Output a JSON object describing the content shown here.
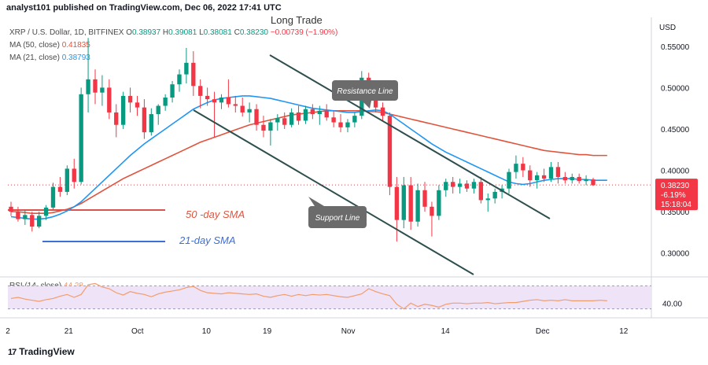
{
  "header": {
    "publisher": "analyst101 published on TradingView.com, Dec 06, 2022 17:41 UTC",
    "overlay_title": "Long Trade"
  },
  "legend": {
    "symbol": "XRP / U.S. Dollar, 1D, BITFINEX",
    "ohlc_prefix_o": "O",
    "o": "0.38937",
    "ohlc_prefix_h": "H",
    "h": "0.39081",
    "ohlc_prefix_l": "L",
    "l": "0.38081",
    "ohlc_prefix_c": "C",
    "c": "0.38230",
    "change": "−0.00739 (−1.90%)",
    "ma50_label": "MA (50, close)",
    "ma50_value": "0.41835",
    "ma21_label": "MA (21, close)",
    "ma21_value": "0.38793",
    "rsi_label": "RSI (14, close)",
    "rsi_value": "44.28"
  },
  "price_axis": {
    "currency": "USD",
    "ticks": [
      "0.55000",
      "0.50000",
      "0.45000",
      "0.40000",
      "0.35000",
      "0.30000"
    ],
    "current_price": "0.38230",
    "current_change": "-6.19%",
    "countdown": "15:18:04"
  },
  "rsi_axis": {
    "ticks": [
      "40.00"
    ]
  },
  "time_axis": {
    "ticks": [
      "2",
      "21",
      "Oct",
      "10",
      "19",
      "Nov",
      "14",
      "Dec",
      "12"
    ]
  },
  "annotations": {
    "resistance": "Resistance Line",
    "support": "Support Line",
    "sma50": "50 -day SMA",
    "sma21": "21-day SMA"
  },
  "colors": {
    "up": "#089981",
    "down": "#f23645",
    "ma50": "#e0533d",
    "ma21": "#2196f3",
    "rsi": "#f39c6b",
    "rsi_band": "#efe3f7",
    "trend": "#2f4f4f",
    "callout": "#6b6b6b"
  },
  "footer": {
    "brand": "TradingView"
  },
  "chart_data": {
    "type": "candlestick",
    "title": "XRP / U.S. Dollar, 1D, BITFINEX",
    "ylabel": "USD",
    "ylim": [
      0.275,
      0.585
    ],
    "candles": [
      {
        "o": 0.356,
        "h": 0.362,
        "l": 0.345,
        "c": 0.35
      },
      {
        "o": 0.35,
        "h": 0.356,
        "l": 0.338,
        "c": 0.341
      },
      {
        "o": 0.341,
        "h": 0.352,
        "l": 0.334,
        "c": 0.346
      },
      {
        "o": 0.346,
        "h": 0.35,
        "l": 0.326,
        "c": 0.332
      },
      {
        "o": 0.332,
        "h": 0.35,
        "l": 0.33,
        "c": 0.345
      },
      {
        "o": 0.345,
        "h": 0.358,
        "l": 0.34,
        "c": 0.355
      },
      {
        "o": 0.355,
        "h": 0.385,
        "l": 0.352,
        "c": 0.38
      },
      {
        "o": 0.38,
        "h": 0.392,
        "l": 0.368,
        "c": 0.374
      },
      {
        "o": 0.374,
        "h": 0.406,
        "l": 0.37,
        "c": 0.402
      },
      {
        "o": 0.402,
        "h": 0.414,
        "l": 0.378,
        "c": 0.386
      },
      {
        "o": 0.386,
        "h": 0.5,
        "l": 0.383,
        "c": 0.492
      },
      {
        "o": 0.492,
        "h": 0.56,
        "l": 0.47,
        "c": 0.51
      },
      {
        "o": 0.51,
        "h": 0.522,
        "l": 0.48,
        "c": 0.494
      },
      {
        "o": 0.494,
        "h": 0.515,
        "l": 0.478,
        "c": 0.5
      },
      {
        "o": 0.5,
        "h": 0.51,
        "l": 0.462,
        "c": 0.47
      },
      {
        "o": 0.47,
        "h": 0.48,
        "l": 0.44,
        "c": 0.455
      },
      {
        "o": 0.455,
        "h": 0.495,
        "l": 0.45,
        "c": 0.49
      },
      {
        "o": 0.49,
        "h": 0.5,
        "l": 0.47,
        "c": 0.482
      },
      {
        "o": 0.482,
        "h": 0.49,
        "l": 0.466,
        "c": 0.476
      },
      {
        "o": 0.476,
        "h": 0.486,
        "l": 0.438,
        "c": 0.446
      },
      {
        "o": 0.446,
        "h": 0.475,
        "l": 0.442,
        "c": 0.468
      },
      {
        "o": 0.468,
        "h": 0.48,
        "l": 0.455,
        "c": 0.478
      },
      {
        "o": 0.478,
        "h": 0.492,
        "l": 0.472,
        "c": 0.488
      },
      {
        "o": 0.488,
        "h": 0.508,
        "l": 0.482,
        "c": 0.504
      },
      {
        "o": 0.504,
        "h": 0.522,
        "l": 0.495,
        "c": 0.516
      },
      {
        "o": 0.516,
        "h": 0.548,
        "l": 0.505,
        "c": 0.53
      },
      {
        "o": 0.53,
        "h": 0.544,
        "l": 0.49,
        "c": 0.502
      },
      {
        "o": 0.502,
        "h": 0.51,
        "l": 0.475,
        "c": 0.49
      },
      {
        "o": 0.49,
        "h": 0.5,
        "l": 0.478,
        "c": 0.486
      },
      {
        "o": 0.486,
        "h": 0.495,
        "l": 0.44,
        "c": 0.482
      },
      {
        "o": 0.482,
        "h": 0.492,
        "l": 0.474,
        "c": 0.488
      },
      {
        "o": 0.488,
        "h": 0.51,
        "l": 0.476,
        "c": 0.48
      },
      {
        "o": 0.48,
        "h": 0.49,
        "l": 0.47,
        "c": 0.478
      },
      {
        "o": 0.478,
        "h": 0.488,
        "l": 0.465,
        "c": 0.47
      },
      {
        "o": 0.47,
        "h": 0.482,
        "l": 0.458,
        "c": 0.474
      },
      {
        "o": 0.474,
        "h": 0.48,
        "l": 0.448,
        "c": 0.455
      },
      {
        "o": 0.455,
        "h": 0.466,
        "l": 0.44,
        "c": 0.448
      },
      {
        "o": 0.448,
        "h": 0.462,
        "l": 0.43,
        "c": 0.458
      },
      {
        "o": 0.458,
        "h": 0.468,
        "l": 0.448,
        "c": 0.463
      },
      {
        "o": 0.463,
        "h": 0.47,
        "l": 0.45,
        "c": 0.455
      },
      {
        "o": 0.455,
        "h": 0.475,
        "l": 0.452,
        "c": 0.47
      },
      {
        "o": 0.47,
        "h": 0.478,
        "l": 0.455,
        "c": 0.46
      },
      {
        "o": 0.46,
        "h": 0.478,
        "l": 0.456,
        "c": 0.474
      },
      {
        "o": 0.474,
        "h": 0.48,
        "l": 0.462,
        "c": 0.468
      },
      {
        "o": 0.468,
        "h": 0.478,
        "l": 0.455,
        "c": 0.472
      },
      {
        "o": 0.472,
        "h": 0.48,
        "l": 0.46,
        "c": 0.464
      },
      {
        "o": 0.464,
        "h": 0.472,
        "l": 0.452,
        "c": 0.458
      },
      {
        "o": 0.458,
        "h": 0.468,
        "l": 0.446,
        "c": 0.452
      },
      {
        "o": 0.452,
        "h": 0.462,
        "l": 0.446,
        "c": 0.458
      },
      {
        "o": 0.458,
        "h": 0.47,
        "l": 0.452,
        "c": 0.466
      },
      {
        "o": 0.466,
        "h": 0.52,
        "l": 0.462,
        "c": 0.512
      },
      {
        "o": 0.512,
        "h": 0.518,
        "l": 0.49,
        "c": 0.498
      },
      {
        "o": 0.498,
        "h": 0.504,
        "l": 0.47,
        "c": 0.476
      },
      {
        "o": 0.476,
        "h": 0.482,
        "l": 0.46,
        "c": 0.466
      },
      {
        "o": 0.466,
        "h": 0.47,
        "l": 0.37,
        "c": 0.38
      },
      {
        "o": 0.38,
        "h": 0.392,
        "l": 0.314,
        "c": 0.34
      },
      {
        "o": 0.34,
        "h": 0.392,
        "l": 0.33,
        "c": 0.382
      },
      {
        "o": 0.382,
        "h": 0.392,
        "l": 0.328,
        "c": 0.338
      },
      {
        "o": 0.338,
        "h": 0.384,
        "l": 0.332,
        "c": 0.376
      },
      {
        "o": 0.376,
        "h": 0.386,
        "l": 0.35,
        "c": 0.356
      },
      {
        "o": 0.356,
        "h": 0.362,
        "l": 0.32,
        "c": 0.345
      },
      {
        "o": 0.345,
        "h": 0.382,
        "l": 0.34,
        "c": 0.376
      },
      {
        "o": 0.376,
        "h": 0.39,
        "l": 0.368,
        "c": 0.386
      },
      {
        "o": 0.386,
        "h": 0.392,
        "l": 0.372,
        "c": 0.38
      },
      {
        "o": 0.38,
        "h": 0.39,
        "l": 0.372,
        "c": 0.384
      },
      {
        "o": 0.384,
        "h": 0.388,
        "l": 0.374,
        "c": 0.378
      },
      {
        "o": 0.378,
        "h": 0.39,
        "l": 0.372,
        "c": 0.386
      },
      {
        "o": 0.386,
        "h": 0.392,
        "l": 0.36,
        "c": 0.364
      },
      {
        "o": 0.364,
        "h": 0.372,
        "l": 0.35,
        "c": 0.366
      },
      {
        "o": 0.366,
        "h": 0.378,
        "l": 0.36,
        "c": 0.374
      },
      {
        "o": 0.374,
        "h": 0.382,
        "l": 0.366,
        "c": 0.378
      },
      {
        "o": 0.378,
        "h": 0.402,
        "l": 0.372,
        "c": 0.398
      },
      {
        "o": 0.398,
        "h": 0.418,
        "l": 0.39,
        "c": 0.408
      },
      {
        "o": 0.408,
        "h": 0.416,
        "l": 0.392,
        "c": 0.4
      },
      {
        "o": 0.4,
        "h": 0.406,
        "l": 0.38,
        "c": 0.388
      },
      {
        "o": 0.388,
        "h": 0.398,
        "l": 0.378,
        "c": 0.394
      },
      {
        "o": 0.394,
        "h": 0.402,
        "l": 0.386,
        "c": 0.39
      },
      {
        "o": 0.39,
        "h": 0.41,
        "l": 0.386,
        "c": 0.404
      },
      {
        "o": 0.404,
        "h": 0.41,
        "l": 0.384,
        "c": 0.392
      },
      {
        "o": 0.392,
        "h": 0.398,
        "l": 0.384,
        "c": 0.388
      },
      {
        "o": 0.388,
        "h": 0.396,
        "l": 0.384,
        "c": 0.392
      },
      {
        "o": 0.392,
        "h": 0.396,
        "l": 0.384,
        "c": 0.387
      },
      {
        "o": 0.387,
        "h": 0.394,
        "l": 0.382,
        "c": 0.389
      },
      {
        "o": 0.389,
        "h": 0.391,
        "l": 0.381,
        "c": 0.382
      }
    ],
    "ma50": [
      0.35,
      0.35,
      0.349,
      0.348,
      0.348,
      0.348,
      0.349,
      0.351,
      0.353,
      0.356,
      0.36,
      0.365,
      0.37,
      0.375,
      0.38,
      0.385,
      0.39,
      0.394,
      0.398,
      0.402,
      0.406,
      0.41,
      0.414,
      0.418,
      0.422,
      0.426,
      0.43,
      0.434,
      0.437,
      0.44,
      0.443,
      0.446,
      0.449,
      0.452,
      0.455,
      0.457,
      0.459,
      0.461,
      0.463,
      0.465,
      0.467,
      0.468,
      0.469,
      0.47,
      0.471,
      0.472,
      0.472,
      0.472,
      0.472,
      0.472,
      0.472,
      0.471,
      0.471,
      0.47,
      0.468,
      0.466,
      0.464,
      0.462,
      0.46,
      0.458,
      0.456,
      0.454,
      0.452,
      0.45,
      0.448,
      0.446,
      0.444,
      0.442,
      0.44,
      0.438,
      0.436,
      0.434,
      0.432,
      0.43,
      0.428,
      0.426,
      0.424,
      0.423,
      0.422,
      0.421,
      0.42,
      0.419,
      0.419,
      0.418,
      0.418,
      0.418
    ],
    "ma21": [
      0.344,
      0.343,
      0.342,
      0.341,
      0.341,
      0.342,
      0.344,
      0.347,
      0.351,
      0.356,
      0.362,
      0.37,
      0.378,
      0.386,
      0.394,
      0.402,
      0.41,
      0.418,
      0.425,
      0.432,
      0.438,
      0.444,
      0.45,
      0.456,
      0.462,
      0.468,
      0.474,
      0.478,
      0.482,
      0.485,
      0.487,
      0.488,
      0.489,
      0.49,
      0.49,
      0.489,
      0.488,
      0.487,
      0.485,
      0.483,
      0.481,
      0.479,
      0.477,
      0.475,
      0.474,
      0.473,
      0.472,
      0.471,
      0.47,
      0.47,
      0.471,
      0.472,
      0.473,
      0.472,
      0.468,
      0.462,
      0.456,
      0.45,
      0.444,
      0.438,
      0.432,
      0.427,
      0.422,
      0.418,
      0.414,
      0.41,
      0.406,
      0.402,
      0.398,
      0.394,
      0.39,
      0.386,
      0.384,
      0.383,
      0.384,
      0.386,
      0.388,
      0.389,
      0.39,
      0.39,
      0.39,
      0.389,
      0.389,
      0.388,
      0.388,
      0.388
    ],
    "rsi": [
      48,
      50,
      47,
      45,
      43,
      46,
      48,
      52,
      55,
      50,
      55,
      72,
      74,
      68,
      65,
      58,
      54,
      60,
      57,
      55,
      51,
      56,
      59,
      61,
      63,
      67,
      69,
      62,
      58,
      57,
      56,
      58,
      57,
      56,
      55,
      56,
      52,
      50,
      53,
      55,
      52,
      55,
      53,
      55,
      54,
      55,
      53,
      51,
      50,
      53,
      56,
      65,
      60,
      56,
      53,
      38,
      30,
      40,
      34,
      38,
      36,
      33,
      38,
      40,
      40,
      39,
      40,
      40,
      41,
      39,
      40,
      41,
      41,
      43,
      45,
      46,
      44,
      45,
      44,
      46,
      44,
      44,
      44,
      44,
      45,
      44
    ],
    "rsi_band": [
      30,
      70
    ],
    "sma50_reference": 0.352,
    "sma21_reference": 0.314
  }
}
